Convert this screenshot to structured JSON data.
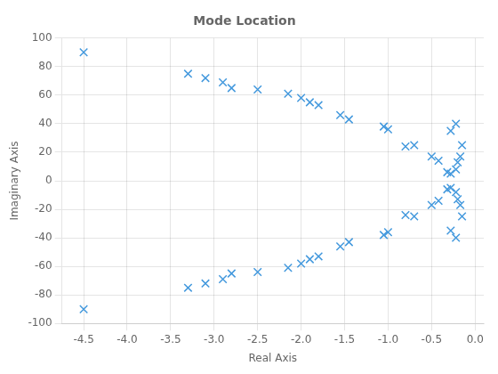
{
  "chart_data": {
    "type": "scatter",
    "title": "Mode Location",
    "xlabel": "Real Axis",
    "ylabel": "Imaginary Axis",
    "x": [
      -4.5,
      -3.3,
      -3.1,
      -2.9,
      -2.8,
      -2.5,
      -2.15,
      -2.0,
      -1.9,
      -1.8,
      -1.55,
      -1.45,
      -1.05,
      -1.0,
      -0.8,
      -0.7,
      -0.5,
      -0.42,
      -0.32,
      -0.28,
      -0.22,
      -0.2,
      -0.17,
      -0.15,
      -0.28,
      -0.22,
      -4.5,
      -3.3,
      -3.1,
      -2.9,
      -2.8,
      -2.5,
      -2.15,
      -2.0,
      -1.9,
      -1.8,
      -1.55,
      -1.45,
      -1.05,
      -1.0,
      -0.8,
      -0.7,
      -0.5,
      -0.42,
      -0.32,
      -0.28,
      -0.22,
      -0.2,
      -0.17,
      -0.15,
      -0.28,
      -0.22
    ],
    "values": [
      90,
      75,
      72,
      69,
      65,
      64,
      61,
      58,
      55,
      53,
      46,
      43,
      38,
      36,
      24,
      25,
      17,
      14,
      6,
      5,
      -8,
      -13,
      -17,
      -25,
      -35,
      -40,
      -90,
      -75,
      -72,
      -69,
      -65,
      -64,
      -61,
      -58,
      -55,
      -53,
      -46,
      -43,
      -38,
      -36,
      -24,
      -25,
      -17,
      -14,
      -6,
      -5,
      8,
      13,
      17,
      25,
      35,
      40
    ],
    "color": "#4499DD",
    "marker": "x",
    "xlim": [
      -4.75,
      0.1
    ],
    "ylim": [
      -100,
      100
    ],
    "xticks": [
      -4.5,
      {
        "value": -4.0,
        "label": "-4.0"
      },
      -3.5,
      {
        "value": -3.0,
        "label": "-3.0"
      },
      -2.5,
      {
        "value": -2.0,
        "label": "-2.0"
      },
      -1.5,
      {
        "value": -1.0,
        "label": "-1.0"
      },
      -0.5,
      {
        "value": 0.0,
        "label": "0.0"
      }
    ],
    "yticks": [
      -100,
      -80,
      -60,
      -40,
      -20,
      0,
      20,
      40,
      60,
      80,
      100
    ],
    "grid": true
  }
}
